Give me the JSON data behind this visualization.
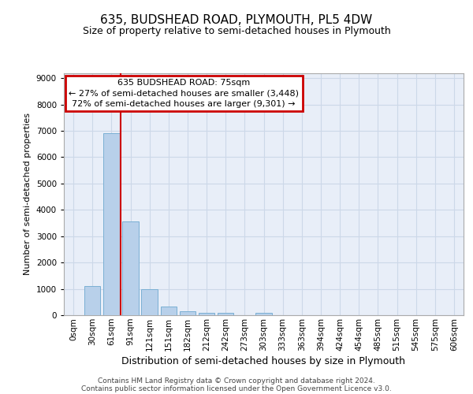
{
  "title_line1": "635, BUDSHEAD ROAD, PLYMOUTH, PL5 4DW",
  "title_line2": "Size of property relative to semi-detached houses in Plymouth",
  "xlabel": "Distribution of semi-detached houses by size in Plymouth",
  "ylabel": "Number of semi-detached properties",
  "footnote_line1": "Contains HM Land Registry data © Crown copyright and database right 2024.",
  "footnote_line2": "Contains public sector information licensed under the Open Government Licence v3.0.",
  "bar_labels": [
    "0sqm",
    "30sqm",
    "61sqm",
    "91sqm",
    "121sqm",
    "151sqm",
    "182sqm",
    "212sqm",
    "242sqm",
    "273sqm",
    "303sqm",
    "333sqm",
    "363sqm",
    "394sqm",
    "424sqm",
    "454sqm",
    "485sqm",
    "515sqm",
    "545sqm",
    "575sqm",
    "606sqm"
  ],
  "bar_values": [
    0,
    1100,
    6900,
    3550,
    975,
    330,
    155,
    100,
    75,
    0,
    75,
    0,
    0,
    0,
    0,
    0,
    0,
    0,
    0,
    0,
    0
  ],
  "bar_color": "#b8d0ea",
  "bar_edge_color": "#7aafd4",
  "grid_color": "#ccd8e8",
  "bg_color": "#e8eef8",
  "annotation_line1": "635 BUDSHEAD ROAD: 75sqm",
  "annotation_line2": "← 27% of semi-detached houses are smaller (3,448)",
  "annotation_line3": "72% of semi-detached houses are larger (9,301) →",
  "annotation_box_color": "#cc0000",
  "red_line_index": 2.5,
  "ylim": [
    0,
    9200
  ],
  "yticks": [
    0,
    1000,
    2000,
    3000,
    4000,
    5000,
    6000,
    7000,
    8000,
    9000
  ],
  "title1_fontsize": 11,
  "title2_fontsize": 9,
  "ylabel_fontsize": 8,
  "xlabel_fontsize": 9,
  "tick_fontsize": 7.5,
  "footnote_fontsize": 6.5,
  "annot_fontsize": 8
}
